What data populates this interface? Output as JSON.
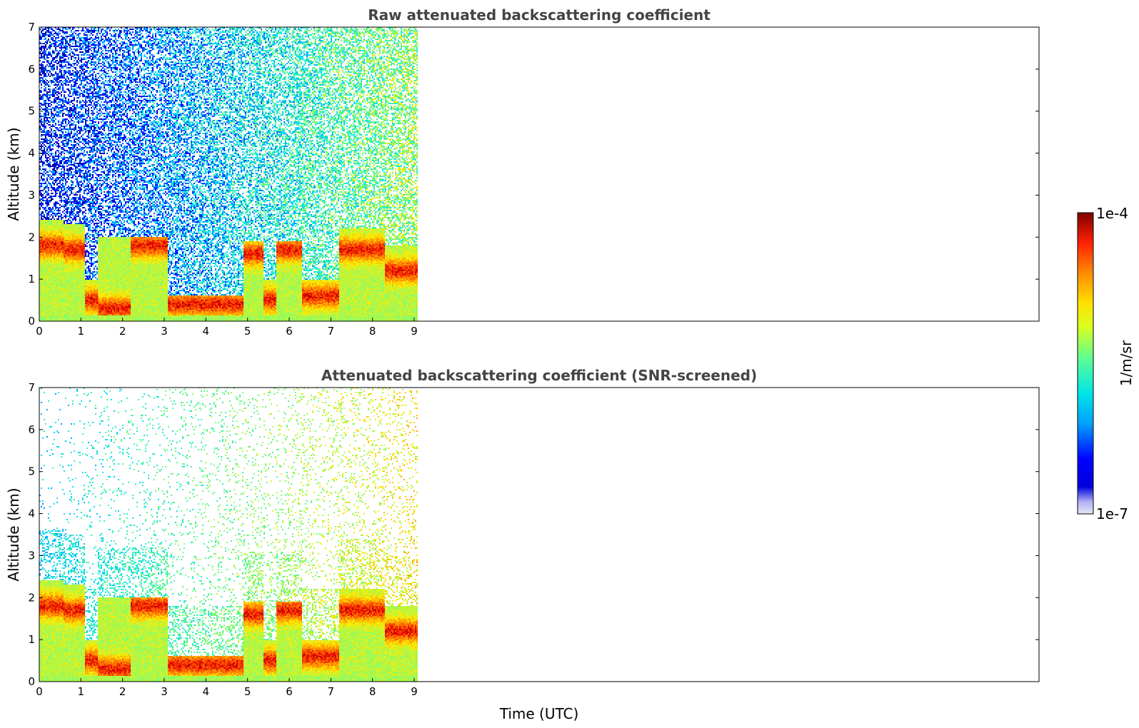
{
  "chart_data": [
    {
      "type": "heatmap",
      "title": "Raw attenuated backscattering coefficient",
      "xlabel": "",
      "ylabel": "Altitude (km)",
      "xlim": [
        0,
        24
      ],
      "ylim": [
        0,
        7
      ],
      "xticks": [
        0,
        1,
        2,
        3,
        4,
        5,
        6,
        7,
        8,
        9
      ],
      "yticks": [
        0,
        1,
        2,
        3,
        4,
        5,
        6,
        7
      ],
      "data_end_time": 9.1,
      "layers": [
        {
          "t0": 0.0,
          "t1": 0.6,
          "top": 2.4,
          "peak_alt": 1.8
        },
        {
          "t0": 0.6,
          "t1": 1.1,
          "top": 2.3,
          "peak_alt": 1.7
        },
        {
          "t0": 1.4,
          "t1": 2.2,
          "top": 2.0,
          "peak_alt": 0.3
        },
        {
          "t0": 2.2,
          "t1": 3.1,
          "top": 2.0,
          "peak_alt": 1.8
        },
        {
          "t0": 3.1,
          "t1": 4.9,
          "top": 0.6,
          "peak_alt": 0.4
        },
        {
          "t0": 4.9,
          "t1": 5.4,
          "top": 1.9,
          "peak_alt": 1.6
        },
        {
          "t0": 5.7,
          "t1": 6.3,
          "top": 1.9,
          "peak_alt": 1.7
        },
        {
          "t0": 6.3,
          "t1": 7.2,
          "top": 1.0,
          "peak_alt": 0.6
        },
        {
          "t0": 7.2,
          "t1": 8.3,
          "top": 2.2,
          "peak_alt": 1.7
        },
        {
          "t0": 8.3,
          "t1": 9.1,
          "top": 1.8,
          "peak_alt": 1.2
        }
      ]
    },
    {
      "type": "heatmap",
      "title": "Attenuated backscattering coefficient (SNR-screened)",
      "xlabel": "Time (UTC)",
      "ylabel": "Altitude (km)",
      "xlim": [
        0,
        24
      ],
      "ylim": [
        0,
        7
      ],
      "xticks": [
        0,
        1,
        2,
        3,
        4,
        5,
        6,
        7,
        8,
        9
      ],
      "yticks": [
        0,
        1,
        2,
        3,
        4,
        5,
        6,
        7
      ],
      "data_end_time": 9.1,
      "screened": true
    }
  ],
  "colorbar": {
    "label": "1/m/sr",
    "min_label": "1e-7",
    "max_label": "1e-4",
    "min": 1e-07,
    "max": 0.0001,
    "scale": "log",
    "colormap": "jet"
  }
}
